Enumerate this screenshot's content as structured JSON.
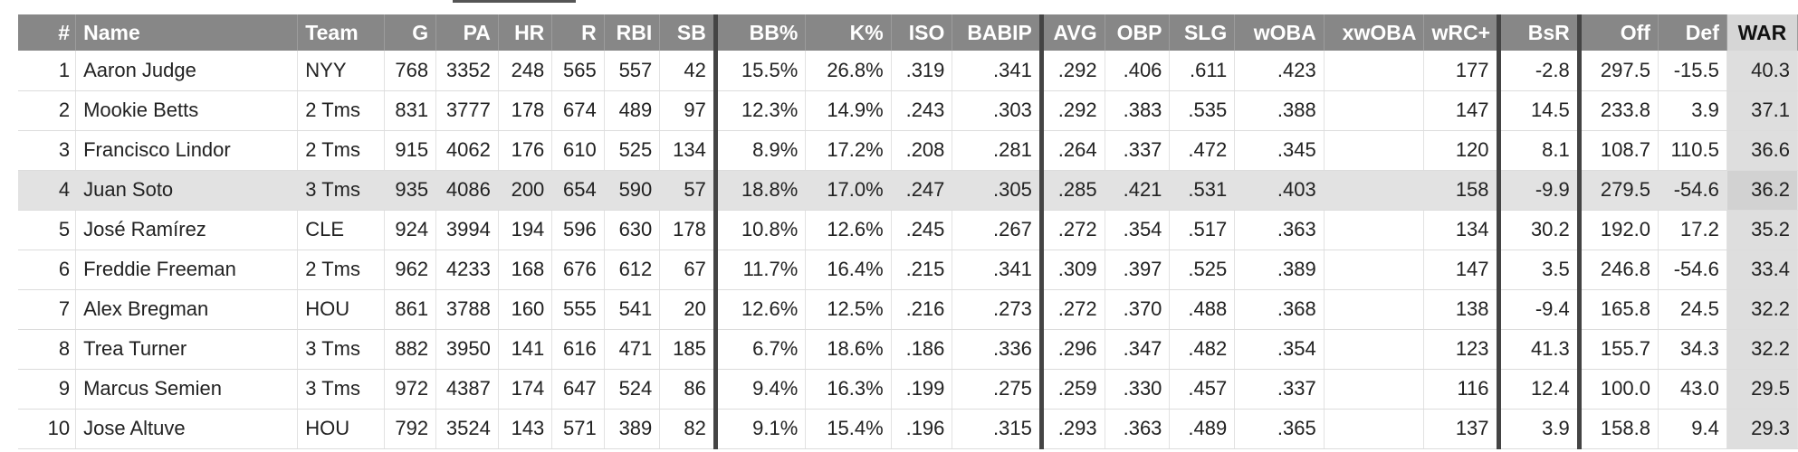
{
  "table": {
    "columns": [
      {
        "key": "rank",
        "label": "#",
        "align": "right"
      },
      {
        "key": "name",
        "label": "Name",
        "align": "left"
      },
      {
        "key": "team",
        "label": "Team",
        "align": "left"
      },
      {
        "key": "g",
        "label": "G",
        "align": "right"
      },
      {
        "key": "pa",
        "label": "PA",
        "align": "right"
      },
      {
        "key": "hr",
        "label": "HR",
        "align": "right"
      },
      {
        "key": "r",
        "label": "R",
        "align": "right"
      },
      {
        "key": "rbi",
        "label": "RBI",
        "align": "right"
      },
      {
        "key": "sb",
        "label": "SB",
        "align": "right"
      },
      {
        "key": "bb",
        "label": "BB%",
        "align": "right"
      },
      {
        "key": "k",
        "label": "K%",
        "align": "right"
      },
      {
        "key": "iso",
        "label": "ISO",
        "align": "right"
      },
      {
        "key": "babip",
        "label": "BABIP",
        "align": "right"
      },
      {
        "key": "avg",
        "label": "AVG",
        "align": "right"
      },
      {
        "key": "obp",
        "label": "OBP",
        "align": "right"
      },
      {
        "key": "slg",
        "label": "SLG",
        "align": "right"
      },
      {
        "key": "woba",
        "label": "wOBA",
        "align": "right"
      },
      {
        "key": "xwoba",
        "label": "xwOBA",
        "align": "right"
      },
      {
        "key": "wrc",
        "label": "wRC+",
        "align": "right"
      },
      {
        "key": "bsr",
        "label": "BsR",
        "align": "right"
      },
      {
        "key": "off",
        "label": "Off",
        "align": "right"
      },
      {
        "key": "def",
        "label": "Def",
        "align": "right"
      },
      {
        "key": "war",
        "label": "WAR",
        "align": "right"
      }
    ],
    "rows": [
      [
        "1",
        "Aaron Judge",
        "NYY",
        "768",
        "3352",
        "248",
        "565",
        "557",
        "42",
        "15.5%",
        "26.8%",
        ".319",
        ".341",
        ".292",
        ".406",
        ".611",
        ".423",
        "",
        "177",
        "-2.8",
        "297.5",
        "-15.5",
        "40.3"
      ],
      [
        "2",
        "Mookie Betts",
        "2 Tms",
        "831",
        "3777",
        "178",
        "674",
        "489",
        "97",
        "12.3%",
        "14.9%",
        ".243",
        ".303",
        ".292",
        ".383",
        ".535",
        ".388",
        "",
        "147",
        "14.5",
        "233.8",
        "3.9",
        "37.1"
      ],
      [
        "3",
        "Francisco Lindor",
        "2 Tms",
        "915",
        "4062",
        "176",
        "610",
        "525",
        "134",
        "8.9%",
        "17.2%",
        ".208",
        ".281",
        ".264",
        ".337",
        ".472",
        ".345",
        "",
        "120",
        "8.1",
        "108.7",
        "110.5",
        "36.6"
      ],
      [
        "4",
        "Juan Soto",
        "3 Tms",
        "935",
        "4086",
        "200",
        "654",
        "590",
        "57",
        "18.8%",
        "17.0%",
        ".247",
        ".305",
        ".285",
        ".421",
        ".531",
        ".403",
        "",
        "158",
        "-9.9",
        "279.5",
        "-54.6",
        "36.2"
      ],
      [
        "5",
        "José Ramírez",
        "CLE",
        "924",
        "3994",
        "194",
        "596",
        "630",
        "178",
        "10.8%",
        "12.6%",
        ".245",
        ".267",
        ".272",
        ".354",
        ".517",
        ".363",
        "",
        "134",
        "30.2",
        "192.0",
        "17.2",
        "35.2"
      ],
      [
        "6",
        "Freddie Freeman",
        "2 Tms",
        "962",
        "4233",
        "168",
        "676",
        "612",
        "67",
        "11.7%",
        "16.4%",
        ".215",
        ".341",
        ".309",
        ".397",
        ".525",
        ".389",
        "",
        "147",
        "3.5",
        "246.8",
        "-54.6",
        "33.4"
      ],
      [
        "7",
        "Alex Bregman",
        "HOU",
        "861",
        "3788",
        "160",
        "555",
        "541",
        "20",
        "12.6%",
        "12.5%",
        ".216",
        ".273",
        ".272",
        ".370",
        ".488",
        ".368",
        "",
        "138",
        "-9.4",
        "165.8",
        "24.5",
        "32.2"
      ],
      [
        "8",
        "Trea Turner",
        "3 Tms",
        "882",
        "3950",
        "141",
        "616",
        "471",
        "185",
        "6.7%",
        "18.6%",
        ".186",
        ".336",
        ".296",
        ".347",
        ".482",
        ".354",
        "",
        "123",
        "41.3",
        "155.7",
        "34.3",
        "32.2"
      ],
      [
        "9",
        "Marcus Semien",
        "3 Tms",
        "972",
        "4387",
        "174",
        "647",
        "524",
        "86",
        "9.4%",
        "16.3%",
        ".199",
        ".275",
        ".259",
        ".330",
        ".457",
        ".337",
        "",
        "116",
        "12.4",
        "100.0",
        "43.0",
        "29.5"
      ],
      [
        "10",
        "Jose Altuve",
        "HOU",
        "792",
        "3524",
        "143",
        "571",
        "389",
        "82",
        "9.1%",
        "15.4%",
        ".196",
        ".315",
        ".293",
        ".363",
        ".489",
        ".365",
        "",
        "137",
        "3.9",
        "158.8",
        "9.4",
        "29.3"
      ]
    ],
    "highlighted_row": 3,
    "colors": {
      "header_bg": "#878787",
      "header_text": "#ffffff",
      "highlight_row_bg": "#e2e2e2",
      "war_column_bg": "#dedede",
      "group_divider": "#444444"
    }
  }
}
